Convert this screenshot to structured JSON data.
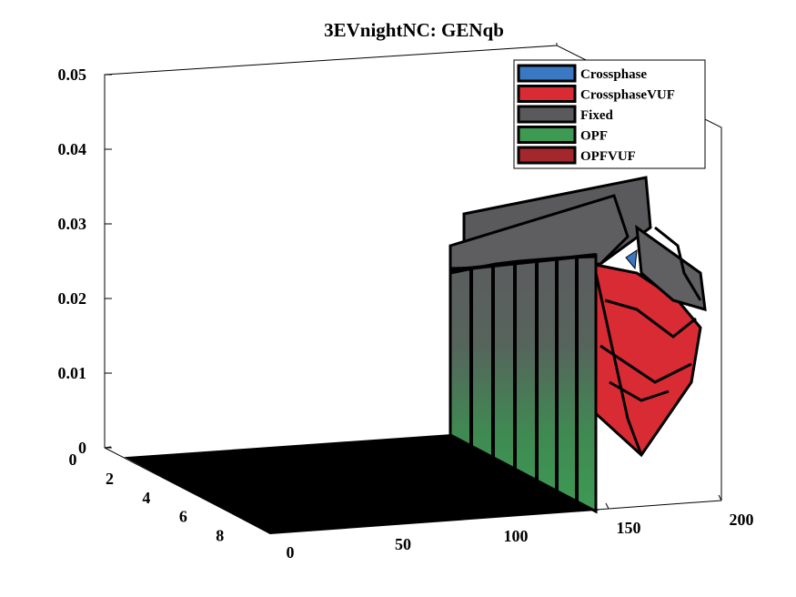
{
  "chart_data": {
    "type": "3d-surface",
    "title": "3EVnightNC: GENqb",
    "xlabel": "",
    "ylabel": "",
    "zlabel": "",
    "x_ticks": [
      "0",
      "50",
      "100",
      "150",
      "200"
    ],
    "y_ticks": [
      "0",
      "2",
      "4",
      "6",
      "8"
    ],
    "z_ticks": [
      "0",
      "0.01",
      "0.02",
      "0.03",
      "0.04",
      "0.05"
    ],
    "xlim": [
      0,
      200
    ],
    "ylim": [
      0,
      9
    ],
    "zlim": [
      0,
      0.05
    ],
    "grid": false,
    "legend_position": "top-right",
    "series": [
      {
        "name": "Crossphase",
        "color": "#3a78c4"
      },
      {
        "name": "CrossphaseVUF",
        "color": "#d92b34"
      },
      {
        "name": "Fixed",
        "color": "#5a5a5c"
      },
      {
        "name": "OPF",
        "color": "#3e9a52"
      },
      {
        "name": "OPFVUF",
        "color": "#a3282c"
      }
    ],
    "notes_from_image": {
      "ridge_x_range": [
        120,
        200
      ],
      "ridge_peak_value_approx": 0.032,
      "wall_top_value_approx": 0.024
    }
  }
}
